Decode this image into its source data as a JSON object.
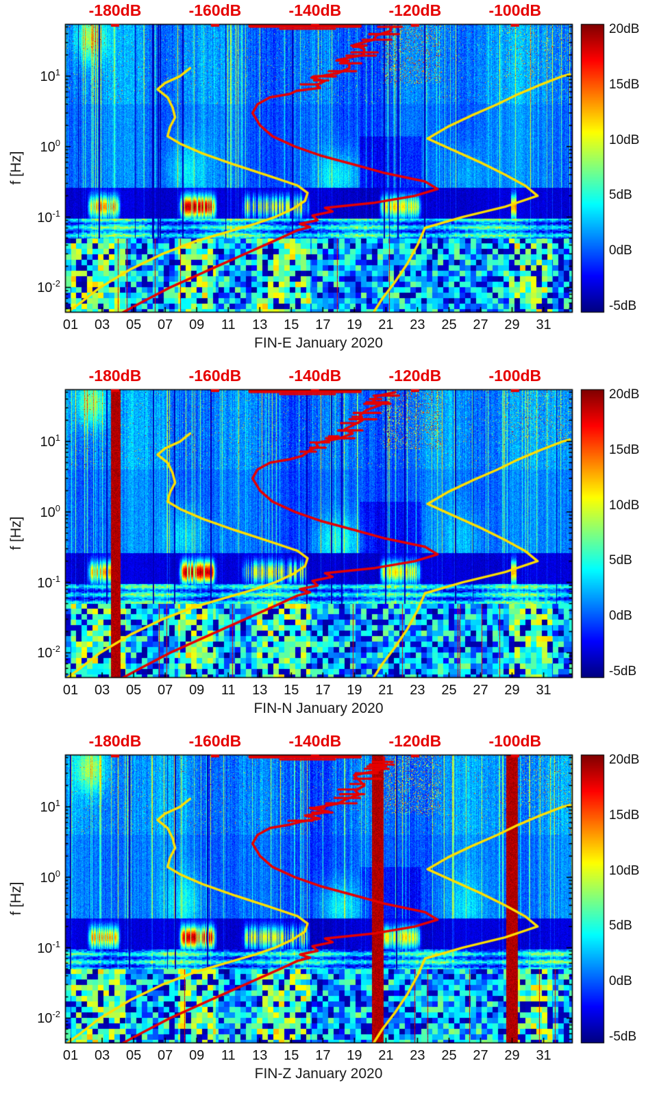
{
  "chart_data": {
    "type": "heatmap",
    "subtype": "spectrogram",
    "figure_title": "",
    "panels": [
      {
        "id": "FIN-E",
        "xlabel": "FIN-E January 2020",
        "seed": 11,
        "artifact_bars_days": []
      },
      {
        "id": "FIN-N",
        "xlabel": "FIN-N January 2020",
        "seed": 22,
        "artifact_bars_days": [
          [
            3.55,
            4.15
          ]
        ]
      },
      {
        "id": "FIN-Z",
        "xlabel": "FIN-Z January 2020",
        "seed": 33,
        "artifact_bars_days": [
          [
            20.1,
            20.85
          ],
          [
            28.6,
            29.35
          ]
        ]
      }
    ],
    "x_axis": {
      "tick_days": [
        "01",
        "03",
        "05",
        "07",
        "09",
        "11",
        "13",
        "15",
        "17",
        "19",
        "21",
        "23",
        "25",
        "27",
        "29",
        "31"
      ],
      "tick_values": [
        1,
        3,
        5,
        7,
        9,
        11,
        13,
        15,
        17,
        19,
        21,
        23,
        25,
        27,
        29,
        31
      ],
      "range_days": [
        0.65,
        32.8
      ]
    },
    "y_axis": {
      "label": "f [Hz]",
      "scale": "log",
      "range_hz": [
        0.0045,
        55
      ],
      "ticks": [
        {
          "m": "10",
          "e": "1",
          "value": 10
        },
        {
          "m": "10",
          "e": "0",
          "value": 1
        },
        {
          "m": "10",
          "e": "-1",
          "value": 0.1
        },
        {
          "m": "10",
          "e": "-2",
          "value": 0.01
        }
      ]
    },
    "top_axis": {
      "ticks": [
        "-180dB",
        "-160dB",
        "-140dB",
        "-120dB",
        "-100dB"
      ],
      "tick_values": [
        -180,
        -160,
        -140,
        -120,
        -100
      ],
      "range_db": [
        -190,
        -88.6
      ],
      "color": "#e60000"
    },
    "colorbar": {
      "ticks": [
        "20dB",
        "15dB",
        "10dB",
        "5dB",
        "0dB",
        "-5dB"
      ],
      "tick_values": [
        20,
        15,
        10,
        5,
        0,
        -5
      ],
      "range_db": [
        -5,
        20
      ],
      "colormap": "jet"
    },
    "curves": {
      "red_median_psd": {
        "color": "#e60000",
        "points_hz_db": [
          [
            0.0042,
            -179
          ],
          [
            0.006,
            -175
          ],
          [
            0.01,
            -169
          ],
          [
            0.018,
            -161
          ],
          [
            0.03,
            -154
          ],
          [
            0.05,
            -147
          ],
          [
            0.065,
            -143.5
          ],
          [
            0.072,
            -141
          ],
          [
            0.08,
            -143
          ],
          [
            0.09,
            -139.5
          ],
          [
            0.105,
            -140.5
          ],
          [
            0.12,
            -136.5
          ],
          [
            0.135,
            -138
          ],
          [
            0.16,
            -128
          ],
          [
            0.2,
            -120
          ],
          [
            0.25,
            -115.5
          ],
          [
            0.32,
            -118
          ],
          [
            0.42,
            -126
          ],
          [
            0.55,
            -132
          ],
          [
            0.75,
            -139
          ],
          [
            1,
            -144
          ],
          [
            1.4,
            -148.5
          ],
          [
            2,
            -151
          ],
          [
            3,
            -152.5
          ],
          [
            4,
            -151.5
          ],
          [
            5,
            -149
          ],
          [
            5.6,
            -145
          ],
          [
            6.2,
            -146
          ],
          [
            6.8,
            -142
          ],
          [
            7.5,
            -143
          ],
          [
            8.5,
            -139.5
          ],
          [
            9.5,
            -141
          ],
          [
            11,
            -137.5
          ],
          [
            13,
            -136
          ],
          [
            15,
            -134.5
          ],
          [
            17,
            -135.5
          ],
          [
            20,
            -133
          ],
          [
            24,
            -131.5
          ],
          [
            28,
            -132.5
          ],
          [
            33,
            -130
          ],
          [
            38,
            -129
          ],
          [
            44,
            -128
          ],
          [
            50,
            -127
          ]
        ]
      },
      "yellow_low_noise_model": {
        "color": "#ffdf00",
        "points_hz_db": [
          [
            0.0042,
            -190
          ],
          [
            0.006,
            -187
          ],
          [
            0.01,
            -183
          ],
          [
            0.018,
            -177
          ],
          [
            0.03,
            -170.5
          ],
          [
            0.045,
            -164
          ],
          [
            0.06,
            -158
          ],
          [
            0.08,
            -152
          ],
          [
            0.1,
            -148
          ],
          [
            0.13,
            -144.5
          ],
          [
            0.17,
            -142
          ],
          [
            0.22,
            -141.5
          ],
          [
            0.28,
            -143.5
          ],
          [
            0.38,
            -149
          ],
          [
            0.55,
            -156
          ],
          [
            0.8,
            -162.5
          ],
          [
            1.1,
            -167
          ],
          [
            1.4,
            -169.5
          ],
          [
            1.9,
            -169
          ],
          [
            2.6,
            -168
          ],
          [
            3.6,
            -168.5
          ],
          [
            5,
            -169.5
          ],
          [
            6.5,
            -171.5
          ],
          [
            8,
            -170
          ],
          [
            10,
            -167
          ],
          [
            13,
            -165
          ]
        ]
      },
      "yellow_high_noise_model": {
        "color": "#ffdf00",
        "points_hz_db": [
          [
            0.0042,
            -128.5
          ],
          [
            0.007,
            -126.5
          ],
          [
            0.012,
            -124
          ],
          [
            0.022,
            -121.5
          ],
          [
            0.04,
            -119.5
          ],
          [
            0.07,
            -118
          ],
          [
            0.1,
            -110.5
          ],
          [
            0.14,
            -102
          ],
          [
            0.2,
            -95.5
          ],
          [
            0.28,
            -98
          ],
          [
            0.4,
            -102
          ],
          [
            0.6,
            -107
          ],
          [
            0.9,
            -112.5
          ],
          [
            1.3,
            -117.5
          ],
          [
            1.9,
            -113.5
          ],
          [
            2.8,
            -108.5
          ],
          [
            4,
            -103.5
          ],
          [
            5.5,
            -99.5
          ],
          [
            7.5,
            -95
          ],
          [
            10,
            -90.5
          ],
          [
            10.6,
            -89
          ]
        ]
      }
    },
    "spectrogram_features": {
      "background_db_range": [
        -5,
        20
      ],
      "microseism_hotspots_days": [
        [
          2.0,
          4.2
        ],
        [
          7.8,
          10.3
        ],
        [
          11.8,
          16.2
        ],
        [
          20.5,
          23.3
        ]
      ],
      "bottom_band_bright_days": [
        [
          1.0,
          4.5
        ],
        [
          7.8,
          10.2
        ],
        [
          12.8,
          16.2
        ],
        [
          28.8,
          31.5
        ]
      ],
      "upper_blob_days": [
        1.3,
        3.2
      ],
      "upper_speckle_cluster_days": [
        20.8,
        24.5
      ],
      "mid_cyan_blob_days": [
        [
          7.0,
          9.5
        ],
        [
          16.5,
          19.5
        ]
      ]
    }
  }
}
